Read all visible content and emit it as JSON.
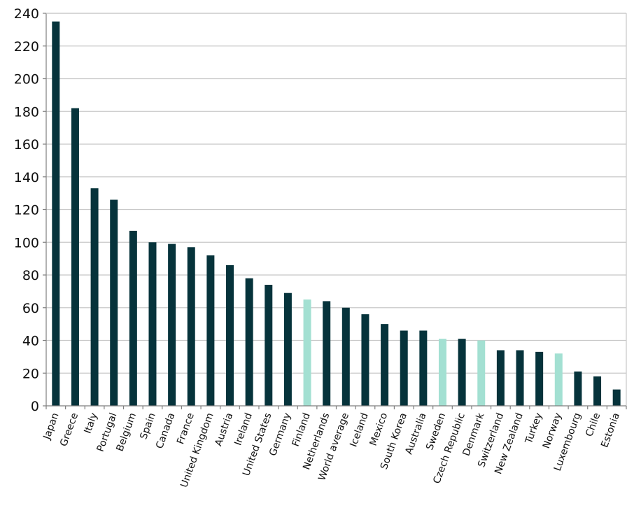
{
  "chart_data": {
    "type": "bar",
    "categories": [
      "Japan",
      "Greece",
      "Italy",
      "Portugal",
      "Belgium",
      "Spain",
      "Canada",
      "France",
      "United Kingdom",
      "Austria",
      "Ireland",
      "United States",
      "Germany",
      "Finland",
      "Netherlands",
      "World average",
      "Iceland",
      "Mexico",
      "South Korea",
      "Australia",
      "Sweden",
      "Czech Republic",
      "Denmark",
      "Switzerland",
      "New Zealand",
      "Turkey",
      "Norway",
      "Luxembourg",
      "Chile",
      "Estonia"
    ],
    "values": [
      235,
      182,
      133,
      126,
      107,
      100,
      99,
      97,
      92,
      86,
      78,
      74,
      69,
      65,
      64,
      60,
      56,
      50,
      46,
      46,
      41,
      41,
      40,
      34,
      34,
      33,
      32,
      21,
      18,
      10
    ],
    "highlighted": [
      "Finland",
      "Sweden",
      "Denmark",
      "Norway"
    ],
    "colors": {
      "bar": "#06333b",
      "highlight": "#a3e0d2",
      "grid": "#c8c8c8",
      "axis": "#7f7f7f"
    },
    "title": "",
    "xlabel": "",
    "ylabel": "",
    "ylim": [
      0,
      240
    ],
    "yticks": [
      0,
      20,
      40,
      60,
      80,
      100,
      120,
      140,
      160,
      180,
      200,
      220,
      240
    ],
    "grid": true,
    "legend": "none"
  }
}
